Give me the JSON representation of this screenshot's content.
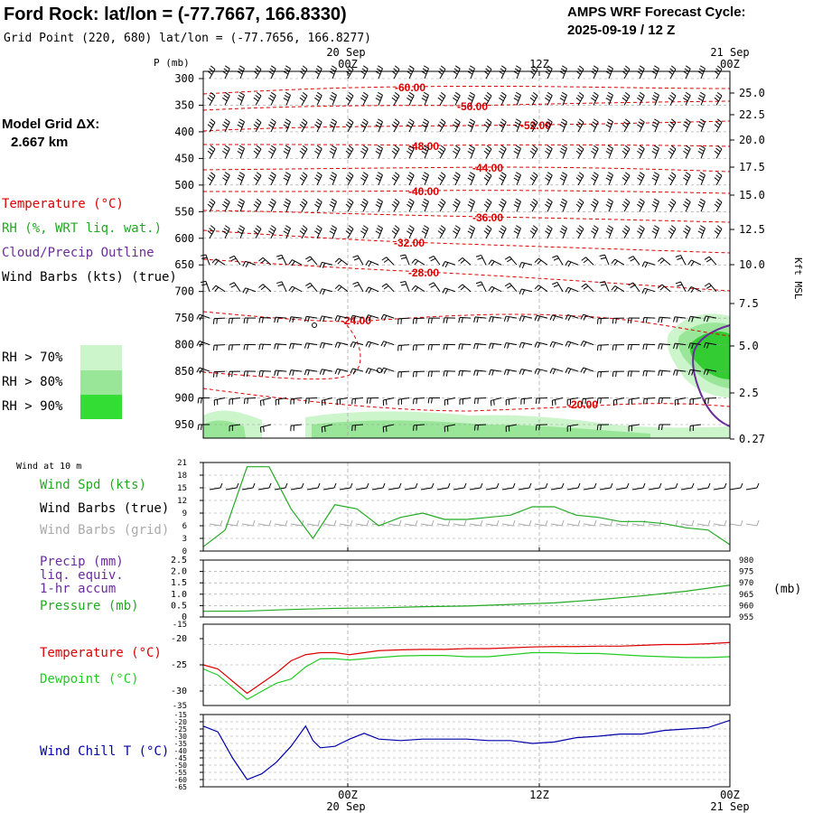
{
  "header": {
    "title": "Ford Rock:  lat/lon = (-77.7667, 166.8330)",
    "grid_point": "Grid Point (220, 680) lat/lon = (-77.7656, 166.8277)",
    "cycle_label": "AMPS WRF Forecast Cycle:",
    "cycle_value": "2025-09-19 / 12  Z"
  },
  "left_panel": {
    "model_grid_label": "Model Grid ΔX:",
    "model_grid_value": "2.667 km",
    "legend_temperature": "Temperature (°C)",
    "legend_rh": "RH (%, WRT liq. wat.)",
    "legend_cloud": "Cloud/Precip Outline",
    "legend_wind": "Wind Barbs (kts) (true)",
    "rh_70": "RH > 70%",
    "rh_80": "RH > 80%",
    "rh_90": "RH > 90%"
  },
  "colors": {
    "temperature": "#dd0000",
    "rh": "#22aa22",
    "cloud": "#6a2c9a",
    "rh70": "#ccf5cc",
    "rh80": "#99e699",
    "rh90": "#33dd33",
    "dewpoint": "#22cc22",
    "windchill": "#0000aa",
    "windspd": "#22aa22",
    "precip": "#6a2c9a",
    "grid_barbs": "#aaaaaa"
  },
  "time_axis": {
    "top_date_1": "20 Sep",
    "top_date_2": "21 Sep",
    "labels": [
      "00Z",
      "12Z",
      "00Z"
    ],
    "bottom_date_1": "20 Sep",
    "bottom_date_2": "21 Sep"
  },
  "chart_data": [
    {
      "type": "contour",
      "name": "cross-section",
      "ylabel": "P (mb)",
      "right_axis_label": "Kft MSL",
      "pressure_ticks": [
        300,
        350,
        400,
        450,
        500,
        550,
        600,
        650,
        700,
        750,
        800,
        850,
        900,
        950
      ],
      "height_ticks": [
        "25.0",
        "22.5",
        "20.0",
        "17.5",
        "15.0",
        "12.5",
        "10.0",
        "7.5",
        "5.0",
        "2.5",
        "0.27"
      ],
      "temperature_contour_labels": [
        "-60.00",
        "-56.00",
        "-52.00",
        "-48.00",
        "-44.00",
        "-40.00",
        "-36.00",
        "-32.00",
        "-28.00",
        "-24.00",
        "-20.00"
      ]
    },
    {
      "type": "line",
      "name": "wind-10m",
      "panel_title": "Wind at 10 m",
      "series_labels": [
        "Wind Spd (kts)",
        "Wind Barbs (true)",
        "Wind Barbs (grid)"
      ],
      "yticks": [
        "21",
        "18",
        "15",
        "12",
        "9",
        "6",
        "3",
        "0"
      ],
      "ylim": [
        0,
        21
      ],
      "x": [
        0,
        3,
        6,
        9,
        12,
        15,
        18,
        21,
        24,
        27,
        30,
        33,
        36,
        39,
        42,
        45,
        48,
        51,
        54,
        57,
        60,
        63,
        66,
        69,
        72
      ],
      "values": [
        1,
        5,
        20,
        20,
        10,
        3,
        11,
        10,
        6,
        8,
        9,
        7.5,
        7.5,
        8,
        8.5,
        10.5,
        10.5,
        8.5,
        8,
        7,
        7,
        6.5,
        5.5,
        5,
        1.5
      ]
    },
    {
      "type": "line",
      "name": "precip-pressure",
      "series_labels": [
        "Precip (mm)",
        "liq. equiv.",
        "1-hr accum",
        "Pressure (mb)"
      ],
      "yticks_left": [
        "2.5",
        "2.0",
        "1.5",
        "1.0",
        "0.5",
        "0"
      ],
      "yticks_right": [
        "980",
        "975",
        "970",
        "965",
        "960",
        "955"
      ],
      "right_unit": "(mb)",
      "ylim": [
        955,
        980
      ],
      "x": [
        0,
        6,
        12,
        18,
        24,
        30,
        36,
        42,
        48,
        54,
        60,
        66,
        72
      ],
      "values": [
        957.5,
        957.6,
        958.3,
        958.8,
        959.0,
        959.5,
        959.8,
        960.5,
        961.2,
        962.6,
        964.3,
        966.3,
        969
      ]
    },
    {
      "type": "line",
      "name": "temperature-dewpoint",
      "series_labels": [
        "Temperature (°C)",
        "Dewpoint (°C)"
      ],
      "yticks": [
        "-15",
        "-20",
        "-25",
        "-30",
        "-35"
      ],
      "ylim": [
        -35,
        -15
      ],
      "x": [
        0,
        2,
        4,
        6,
        8,
        10,
        12,
        14,
        16,
        18,
        20,
        22,
        24,
        27,
        30,
        33,
        36,
        39,
        42,
        45,
        48,
        51,
        54,
        57,
        60,
        63,
        66,
        69,
        72
      ],
      "series": [
        {
          "name": "Temperature",
          "values": [
            -25,
            -26,
            -29,
            -32,
            -29.5,
            -27,
            -24,
            -22.5,
            -22,
            -22,
            -22.5,
            -22,
            -21.5,
            -21.3,
            -21.2,
            -21.2,
            -21,
            -21,
            -20.8,
            -20.6,
            -20.5,
            -20.5,
            -20.4,
            -20.4,
            -20.2,
            -20,
            -20,
            -19.8,
            -19.5
          ]
        },
        {
          "name": "Dewpoint",
          "values": [
            -26,
            -27.5,
            -30.5,
            -33.5,
            -31.5,
            -29.5,
            -28.5,
            -25.5,
            -23.5,
            -23.5,
            -23.8,
            -23.5,
            -23.2,
            -22.8,
            -22.7,
            -22.7,
            -23,
            -23,
            -22.5,
            -22,
            -22,
            -22.2,
            -22.2,
            -22.5,
            -22.8,
            -23,
            -23.2,
            -23.2,
            -23
          ]
        }
      ]
    },
    {
      "type": "line",
      "name": "wind-chill",
      "series_labels": [
        "Wind Chill T (°C)"
      ],
      "yticks": [
        "-15",
        "-20",
        "-25",
        "-30",
        "-35",
        "-40",
        "-45",
        "-50",
        "-55",
        "-60",
        "-65"
      ],
      "ylim": [
        -65,
        -15
      ],
      "x": [
        0,
        2,
        4,
        6,
        8,
        10,
        12,
        14,
        15,
        16,
        18,
        20,
        22,
        24,
        27,
        30,
        33,
        36,
        39,
        42,
        45,
        48,
        51,
        54,
        57,
        60,
        63,
        66,
        69,
        72
      ],
      "values": [
        -23,
        -27,
        -45,
        -60,
        -56,
        -48,
        -37,
        -23,
        -33,
        -38,
        -37,
        -32,
        -28,
        -32,
        -33,
        -32,
        -32,
        -32,
        -33,
        -33,
        -35,
        -34,
        -31,
        -30,
        -28.5,
        -28.5,
        -26,
        -25,
        -24,
        -19
      ]
    }
  ]
}
